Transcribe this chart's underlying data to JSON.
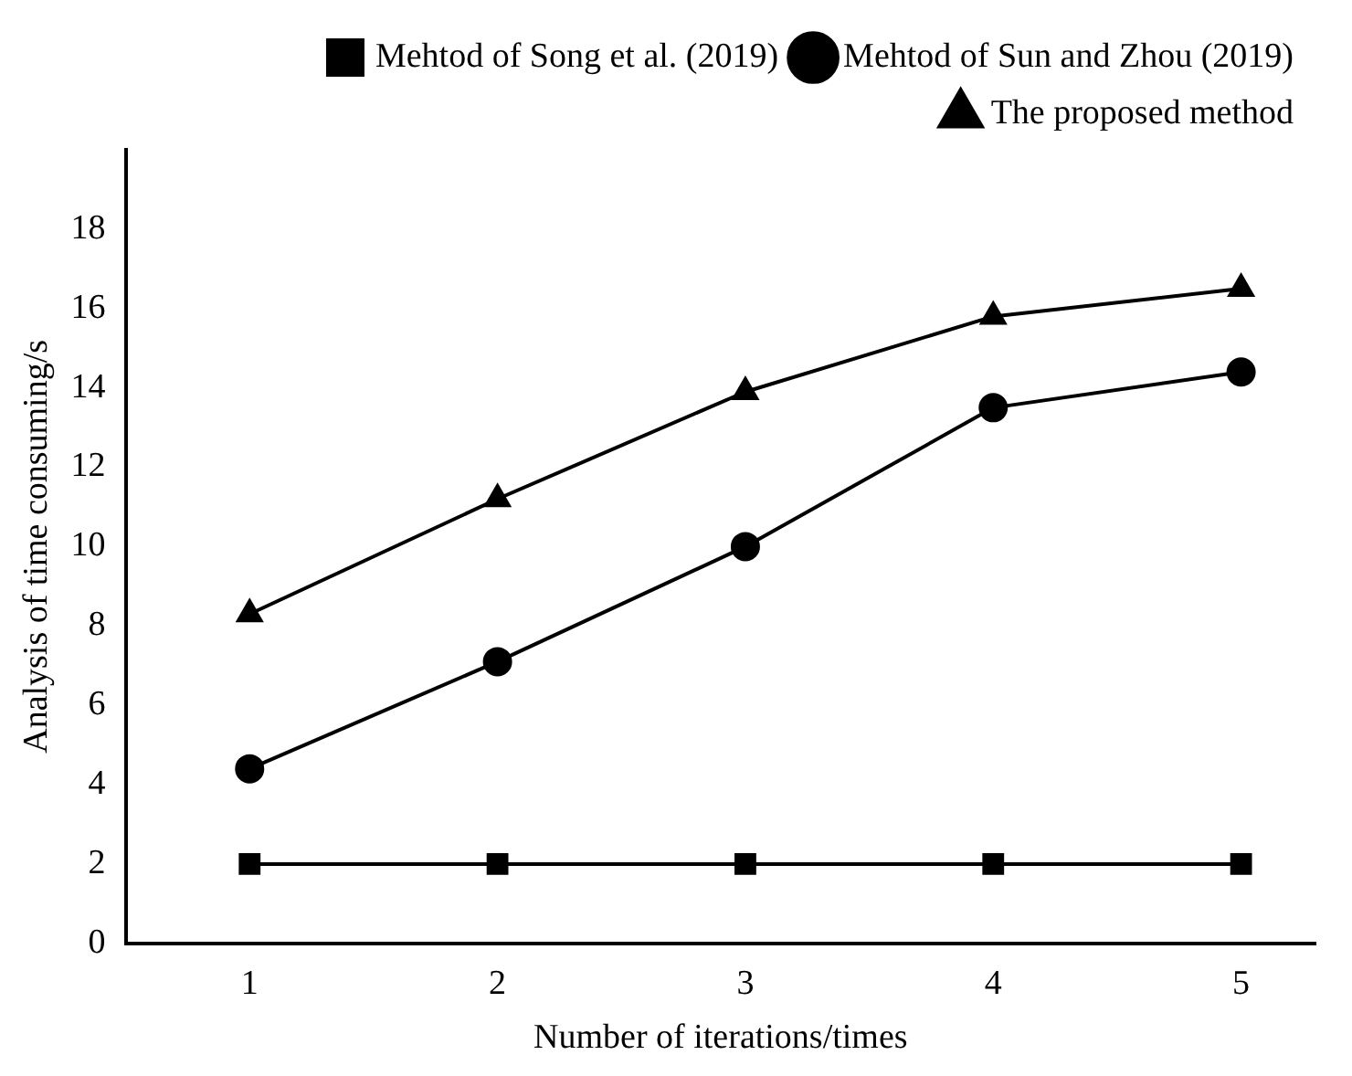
{
  "chart_data": {
    "type": "line",
    "xlabel": "Number of iterations/times",
    "ylabel": "Analysis of time consuming/s",
    "x": [
      1,
      2,
      3,
      4,
      5
    ],
    "series": [
      {
        "name": "Mehtod of Song et al. (2019)",
        "color": "#000000",
        "marker": "square",
        "values": [
          2,
          2,
          2,
          2,
          2
        ]
      },
      {
        "name": "Mehtod of Sun and Zhou (2019)",
        "color": "#000000",
        "marker": "circle",
        "values": [
          4.4,
          7.1,
          10.0,
          13.5,
          14.4
        ]
      },
      {
        "name": "The proposed method",
        "color": "#000000",
        "marker": "triangle",
        "values": [
          8.3,
          11.2,
          13.9,
          15.8,
          16.5
        ]
      }
    ],
    "xlim": [
      0.5,
      5.3
    ],
    "xticks": [
      1,
      2,
      3,
      4,
      5
    ],
    "ylim": [
      0,
      20
    ],
    "yticks": [
      0,
      2,
      4,
      6,
      8,
      10,
      12,
      14,
      16,
      18
    ],
    "grid": false,
    "legend": "top",
    "line_style": "solid"
  }
}
